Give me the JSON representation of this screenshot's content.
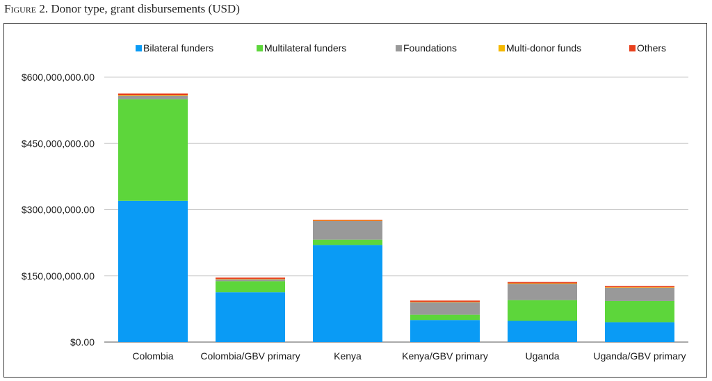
{
  "figure": {
    "label": "Figure 2.",
    "title": "Donor type, grant disbursements (USD)"
  },
  "chart_data": {
    "type": "bar",
    "stacked": true,
    "categories": [
      "Colombia",
      "Colombia/GBV primary",
      "Kenya",
      "Kenya/GBV primary",
      "Uganda",
      "Uganda/GBV primary"
    ],
    "series": [
      {
        "name": "Bilateral funders",
        "color": "#0a9bf5",
        "values": [
          320000000,
          113000000,
          220000000,
          50000000,
          48000000,
          45000000
        ]
      },
      {
        "name": "Multilateral funders",
        "color": "#5dd63b",
        "values": [
          230000000,
          25000000,
          12000000,
          12000000,
          47000000,
          48000000
        ]
      },
      {
        "name": "Foundations",
        "color": "#999999",
        "values": [
          8000000,
          4000000,
          42000000,
          28000000,
          37000000,
          30000000
        ]
      },
      {
        "name": "Multi-donor funds",
        "color": "#f5b800",
        "values": [
          1000000,
          1000000,
          1000000,
          1000000,
          1000000,
          1000000
        ]
      },
      {
        "name": "Others",
        "color": "#e8401c",
        "values": [
          4000000,
          3000000,
          2000000,
          3000000,
          3000000,
          3000000
        ]
      }
    ],
    "y_ticks": [
      "$0.00",
      "$150,000,000.00",
      "$300,000,000.00",
      "$450,000,000.00",
      "$600,000,000.00"
    ],
    "ylim": [
      0,
      600000000
    ],
    "grid": true,
    "legend_position": "top"
  }
}
